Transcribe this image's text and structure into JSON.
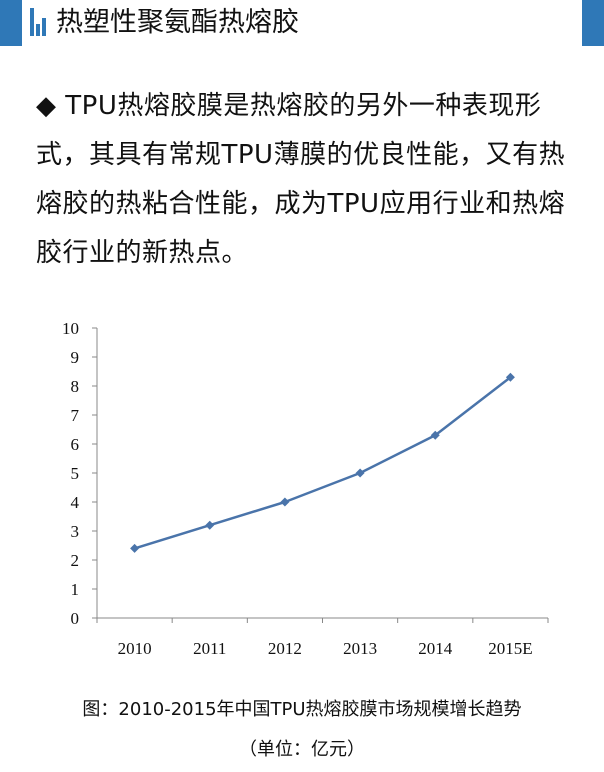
{
  "header": {
    "title": "热塑性聚氨酯热熔胶"
  },
  "body": {
    "paragraph": "◆ TPU热熔胶膜是热熔胶的另外一种表现形式，其具有常规TPU薄膜的优良性能，又有热熔胶的热粘合性能，成为TPU应用行业和热熔胶行业的新热点。"
  },
  "colors": {
    "accent": "#2f78b7",
    "line": "#4a74aa"
  },
  "chart_data": {
    "type": "line",
    "categories": [
      "2010",
      "2011",
      "2012",
      "2013",
      "2014",
      "2015E"
    ],
    "values": [
      2.4,
      3.2,
      4.0,
      5.0,
      6.3,
      8.3
    ],
    "ylim": [
      0,
      10
    ],
    "yticks": [
      "0",
      "1",
      "2",
      "3",
      "4",
      "5",
      "6",
      "7",
      "8",
      "9",
      "10"
    ],
    "title": "",
    "xlabel": "",
    "ylabel": "",
    "grid": false,
    "legend": "none"
  },
  "caption": {
    "line1": "图：2010-2015年中国TPU热熔胶膜市场规模增长趋势",
    "line2": "（单位：亿元）"
  }
}
